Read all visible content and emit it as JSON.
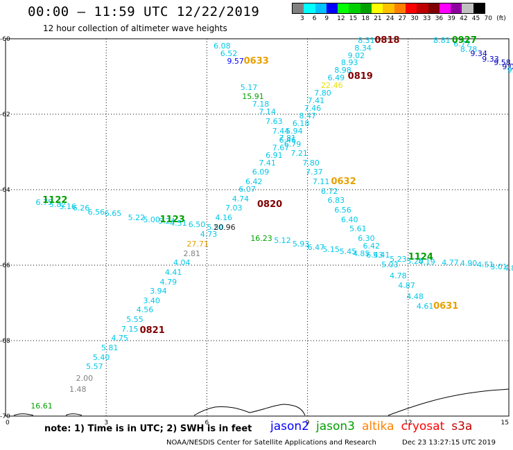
{
  "header": {
    "title": "00:00 – 11:59 UTC 12/22/2019",
    "subtitle": "12 hour collection of altimeter wave heights"
  },
  "colorbar": {
    "colors": [
      "#808080",
      "#00ffff",
      "#00c0ff",
      "#0000ff",
      "#00ff00",
      "#00d000",
      "#00a000",
      "#ffff00",
      "#ffc000",
      "#ff8000",
      "#ff0000",
      "#c00000",
      "#800000",
      "#ff00ff",
      "#9000a0",
      "#c0c0c0",
      "#000000"
    ],
    "labels": [
      "3",
      "6",
      "9",
      "12",
      "15",
      "18",
      "21",
      "24",
      "27",
      "30",
      "33",
      "36",
      "39",
      "42",
      "45",
      "70",
      "(ft)"
    ]
  },
  "axes": {
    "x_ticks": [
      "0",
      "3",
      "6",
      "9",
      "12",
      "15"
    ],
    "y_ticks": [
      "-60",
      "-62",
      "-64",
      "-66",
      "-68",
      "-70"
    ],
    "x_range": [
      0,
      15
    ],
    "y_range": [
      -60,
      -70
    ]
  },
  "chart_data": {
    "type": "scatter",
    "wave_points": [
      {
        "v": "6.75",
        "x": 0.9,
        "y": -64.35,
        "c": "#00c8e8"
      },
      {
        "v": "5.82",
        "x": 1.3,
        "y": -64.4,
        "c": "#00c8e8"
      },
      {
        "v": "5.16",
        "x": 1.6,
        "y": -64.45,
        "c": "#00c8e8"
      },
      {
        "v": "6.26",
        "x": 2.0,
        "y": -64.5,
        "c": "#00c8e8"
      },
      {
        "v": "6.56",
        "x": 2.45,
        "y": -64.6,
        "c": "#00c8e8"
      },
      {
        "v": "6.65",
        "x": 2.95,
        "y": -64.65,
        "c": "#00c8e8"
      },
      {
        "v": "5.22",
        "x": 3.65,
        "y": -64.75,
        "c": "#00c8e8"
      },
      {
        "v": "5.00",
        "x": 4.1,
        "y": -64.8,
        "c": "#00c8e8"
      },
      {
        "v": "5.24",
        "x": 4.55,
        "y": -64.85,
        "c": "#00c8e8"
      },
      {
        "v": "4.51",
        "x": 4.9,
        "y": -64.9,
        "c": "#00c8e8"
      },
      {
        "v": "6.50",
        "x": 5.45,
        "y": -64.93,
        "c": "#00c8e8"
      },
      {
        "v": "1.48",
        "x": 1.9,
        "y": -69.3,
        "c": "#808080"
      },
      {
        "v": "2.00",
        "x": 2.1,
        "y": -69.0,
        "c": "#808080"
      },
      {
        "v": "5.57",
        "x": 2.4,
        "y": -68.7,
        "c": "#00c8e8"
      },
      {
        "v": "5.40",
        "x": 2.6,
        "y": -68.45,
        "c": "#00c8e8"
      },
      {
        "v": "5.81",
        "x": 2.85,
        "y": -68.2,
        "c": "#00c8e8"
      },
      {
        "v": "4.75",
        "x": 3.15,
        "y": -67.95,
        "c": "#00c8e8"
      },
      {
        "v": "7.15",
        "x": 3.45,
        "y": -67.7,
        "c": "#00c8e8"
      },
      {
        "v": "5.55",
        "x": 3.6,
        "y": -67.45,
        "c": "#00c8e8"
      },
      {
        "v": "4.56",
        "x": 3.9,
        "y": -67.2,
        "c": "#00c8e8"
      },
      {
        "v": "3.40",
        "x": 4.1,
        "y": -66.95,
        "c": "#00c8e8"
      },
      {
        "v": "3.94",
        "x": 4.3,
        "y": -66.7,
        "c": "#00c8e8"
      },
      {
        "v": "4.79",
        "x": 4.6,
        "y": -66.45,
        "c": "#00c8e8"
      },
      {
        "v": "4.41",
        "x": 4.75,
        "y": -66.2,
        "c": "#00c8e8"
      },
      {
        "v": "4.04",
        "x": 5.0,
        "y": -65.95,
        "c": "#00c8e8"
      },
      {
        "v": "2.81",
        "x": 5.3,
        "y": -65.7,
        "c": "#808080"
      },
      {
        "v": "27.71",
        "x": 5.4,
        "y": -65.45,
        "c": "#e8a000"
      },
      {
        "v": "4.73",
        "x": 5.8,
        "y": -65.2,
        "c": "#00c8e8"
      },
      {
        "v": "5.50",
        "x": 6.0,
        "y": -65.0,
        "c": "#00c8e8"
      },
      {
        "v": "4.16",
        "x": 6.25,
        "y": -64.75,
        "c": "#00c8e8"
      },
      {
        "v": "7.03",
        "x": 6.55,
        "y": -64.5,
        "c": "#00c8e8"
      },
      {
        "v": "4.74",
        "x": 6.75,
        "y": -64.25,
        "c": "#00c8e8"
      },
      {
        "v": "6.07",
        "x": 6.95,
        "y": -64.0,
        "c": "#00c8e8"
      },
      {
        "v": "6.42",
        "x": 7.15,
        "y": -63.8,
        "c": "#00c8e8"
      },
      {
        "v": "6.09",
        "x": 7.35,
        "y": -63.55,
        "c": "#00c8e8"
      },
      {
        "v": "7.41",
        "x": 7.55,
        "y": -63.3,
        "c": "#00c8e8"
      },
      {
        "v": "6.91",
        "x": 7.75,
        "y": -63.1,
        "c": "#00c8e8"
      },
      {
        "v": "7.67",
        "x": 7.95,
        "y": -62.9,
        "c": "#00c8e8"
      },
      {
        "v": "6.46",
        "x": 8.15,
        "y": -62.7,
        "c": "#00c8e8"
      },
      {
        "v": "5.94",
        "x": 8.35,
        "y": -62.45,
        "c": "#00c8e8"
      },
      {
        "v": "6.18",
        "x": 8.55,
        "y": -62.25,
        "c": "#00c8e8"
      },
      {
        "v": "8.47",
        "x": 8.75,
        "y": -62.05,
        "c": "#00c8e8"
      },
      {
        "v": "7.46",
        "x": 8.9,
        "y": -61.85,
        "c": "#00c8e8"
      },
      {
        "v": "7.41",
        "x": 9.0,
        "y": -61.65,
        "c": "#00c8e8"
      },
      {
        "v": "7.80",
        "x": 9.2,
        "y": -61.45,
        "c": "#00c8e8"
      },
      {
        "v": "22.46",
        "x": 9.4,
        "y": -61.25,
        "c": "#e8e000"
      },
      {
        "v": "6.49",
        "x": 9.6,
        "y": -61.05,
        "c": "#00c8e8"
      },
      {
        "v": "8.98",
        "x": 9.8,
        "y": -60.85,
        "c": "#00c8e8"
      },
      {
        "v": "8.93",
        "x": 10.0,
        "y": -60.65,
        "c": "#00c8e8"
      },
      {
        "v": "9.02",
        "x": 10.2,
        "y": -60.45,
        "c": "#00c8e8"
      },
      {
        "v": "8.34",
        "x": 10.4,
        "y": -60.25,
        "c": "#00c8e8"
      },
      {
        "v": "8.31",
        "x": 10.5,
        "y": -60.05,
        "c": "#00c8e8"
      },
      {
        "v": "6.08",
        "x": 6.2,
        "y": -60.2,
        "c": "#00c8e8"
      },
      {
        "v": "6.52",
        "x": 6.4,
        "y": -60.4,
        "c": "#00c8e8"
      },
      {
        "v": "9.57",
        "x": 6.6,
        "y": -60.6,
        "c": "#0000ff"
      },
      {
        "v": "5.17",
        "x": 7.0,
        "y": -61.3,
        "c": "#00c8e8"
      },
      {
        "v": "15.91",
        "x": 7.05,
        "y": -61.55,
        "c": "#00a000"
      },
      {
        "v": "7.18",
        "x": 7.35,
        "y": -61.75,
        "c": "#00c8e8"
      },
      {
        "v": "7.14",
        "x": 7.55,
        "y": -61.95,
        "c": "#00c8e8"
      },
      {
        "v": "7.63",
        "x": 7.75,
        "y": -62.2,
        "c": "#00c8e8"
      },
      {
        "v": "7.44",
        "x": 7.95,
        "y": -62.45,
        "c": "#00c8e8"
      },
      {
        "v": "7.81",
        "x": 8.15,
        "y": -62.65,
        "c": "#00c8e8"
      },
      {
        "v": "6.79",
        "x": 8.3,
        "y": -62.8,
        "c": "#00c8e8"
      },
      {
        "v": "7.21",
        "x": 8.5,
        "y": -63.05,
        "c": "#00c8e8"
      },
      {
        "v": "7.80",
        "x": 8.85,
        "y": -63.3,
        "c": "#00c8e8"
      },
      {
        "v": "7.37",
        "x": 8.95,
        "y": -63.55,
        "c": "#00c8e8"
      },
      {
        "v": "7.11",
        "x": 9.15,
        "y": -63.8,
        "c": "#00c8e8"
      },
      {
        "v": "6.72",
        "x": 9.4,
        "y": -64.05,
        "c": "#00c8e8"
      },
      {
        "v": "6.83",
        "x": 9.6,
        "y": -64.3,
        "c": "#00c8e8"
      },
      {
        "v": "6.56",
        "x": 9.8,
        "y": -64.55,
        "c": "#00c8e8"
      },
      {
        "v": "6.40",
        "x": 10.0,
        "y": -64.8,
        "c": "#00c8e8"
      },
      {
        "v": "5.61",
        "x": 10.25,
        "y": -65.05,
        "c": "#00c8e8"
      },
      {
        "v": "6.30",
        "x": 10.5,
        "y": -65.3,
        "c": "#00c8e8"
      },
      {
        "v": "6.42",
        "x": 10.65,
        "y": -65.5,
        "c": "#00c8e8"
      },
      {
        "v": "5.41",
        "x": 10.95,
        "y": -65.75,
        "c": "#00c8e8"
      },
      {
        "v": "5.03",
        "x": 11.2,
        "y": -66.0,
        "c": "#00c8e8"
      },
      {
        "v": "4.78",
        "x": 11.45,
        "y": -66.3,
        "c": "#00c8e8"
      },
      {
        "v": "4.87",
        "x": 11.7,
        "y": -66.55,
        "c": "#00c8e8"
      },
      {
        "v": "4.48",
        "x": 11.95,
        "y": -66.85,
        "c": "#00c8e8"
      },
      {
        "v": "4.61",
        "x": 12.25,
        "y": -67.1,
        "c": "#00c8e8"
      },
      {
        "v": "20.96",
        "x": 6.2,
        "y": -65.0,
        "c": "#202020"
      },
      {
        "v": "16.23",
        "x": 7.3,
        "y": -65.3,
        "c": "#00a000"
      },
      {
        "v": "5.12",
        "x": 8.0,
        "y": -65.35,
        "c": "#00c8e8"
      },
      {
        "v": "5.93",
        "x": 8.55,
        "y": -65.45,
        "c": "#00c8e8"
      },
      {
        "v": "6.47",
        "x": 9.0,
        "y": -65.55,
        "c": "#00c8e8"
      },
      {
        "v": "5.15",
        "x": 9.45,
        "y": -65.6,
        "c": "#00c8e8"
      },
      {
        "v": "5.45",
        "x": 9.95,
        "y": -65.65,
        "c": "#00c8e8"
      },
      {
        "v": "4.85",
        "x": 10.35,
        "y": -65.7,
        "c": "#00c8e8"
      },
      {
        "v": "6.43",
        "x": 10.75,
        "y": -65.75,
        "c": "#00c8e8"
      },
      {
        "v": "5.23",
        "x": 11.45,
        "y": -65.85,
        "c": "#00c8e8"
      },
      {
        "v": "5.20",
        "x": 11.95,
        "y": -65.9,
        "c": "#00c8e8"
      },
      {
        "v": "4.19",
        "x": 12.3,
        "y": -65.93,
        "c": "#00c8e8"
      },
      {
        "v": "4.77",
        "x": 13.0,
        "y": -65.95,
        "c": "#00c8e8"
      },
      {
        "v": "4.90",
        "x": 13.55,
        "y": -65.97,
        "c": "#00c8e8"
      },
      {
        "v": "4.51",
        "x": 14.05,
        "y": -66.0,
        "c": "#00c8e8"
      },
      {
        "v": "5.01",
        "x": 14.45,
        "y": -66.05,
        "c": "#00c8e8"
      },
      {
        "v": "4.80",
        "x": 14.85,
        "y": -66.1,
        "c": "#00c8e8"
      },
      {
        "v": "8.81",
        "x": 12.75,
        "y": -60.05,
        "c": "#00c8e8"
      },
      {
        "v": "6.77",
        "x": 13.35,
        "y": -60.15,
        "c": "#00c8e8"
      },
      {
        "v": "8.78",
        "x": 13.55,
        "y": -60.3,
        "c": "#00c8e8"
      },
      {
        "v": "9.34",
        "x": 13.85,
        "y": -60.4,
        "c": "#0000c0"
      },
      {
        "v": "9.33",
        "x": 14.2,
        "y": -60.55,
        "c": "#0000c0"
      },
      {
        "v": "9.58",
        "x": 14.55,
        "y": -60.65,
        "c": "#0000c0"
      },
      {
        "v": "9.06",
        "x": 14.8,
        "y": -60.75,
        "c": "#0000c0"
      },
      {
        "v": "9.35",
        "x": 14.95,
        "y": -60.85,
        "c": "#00c8e8"
      },
      {
        "v": "16.61",
        "x": 0.75,
        "y": -69.75,
        "c": "#00a000"
      }
    ],
    "time_labels": [
      {
        "t": "1122",
        "x": 1.1,
        "y": -64.3,
        "c": "#00a000"
      },
      {
        "t": "1123",
        "x": 4.6,
        "y": -64.8,
        "c": "#00a000"
      },
      {
        "t": "0821",
        "x": 4.0,
        "y": -67.75,
        "c": "#800000"
      },
      {
        "t": "0820",
        "x": 7.5,
        "y": -64.4,
        "c": "#800000"
      },
      {
        "t": "0632",
        "x": 9.7,
        "y": -63.8,
        "c": "#e8a000"
      },
      {
        "t": "0633",
        "x": 7.1,
        "y": -60.6,
        "c": "#e8a000"
      },
      {
        "t": "0819",
        "x": 10.2,
        "y": -61.0,
        "c": "#800000"
      },
      {
        "t": "0818",
        "x": 11.0,
        "y": -60.05,
        "c": "#800000"
      },
      {
        "t": "0927",
        "x": 13.3,
        "y": -60.05,
        "c": "#00a000"
      },
      {
        "t": "1124",
        "x": 12.0,
        "y": -65.8,
        "c": "#00a000"
      },
      {
        "t": "0631",
        "x": 12.75,
        "y": -67.1,
        "c": "#e8a000"
      }
    ]
  },
  "footer": {
    "note": "note:  1) Time is in UTC;  2) SWH is in feet",
    "legend": [
      {
        "label": "jason2",
        "color": "#0000ff"
      },
      {
        "label": "jason3",
        "color": "#00a000"
      },
      {
        "label": "altika",
        "color": "#ff8000"
      },
      {
        "label": "cryosat",
        "color": "#ff0000"
      },
      {
        "label": "s3a",
        "color": "#c00000"
      }
    ],
    "credit": "NOAA/NESDIS Center for Satellite Applications and Research",
    "timestamp": "Dec 23 13:27:15 UTC 2019"
  }
}
